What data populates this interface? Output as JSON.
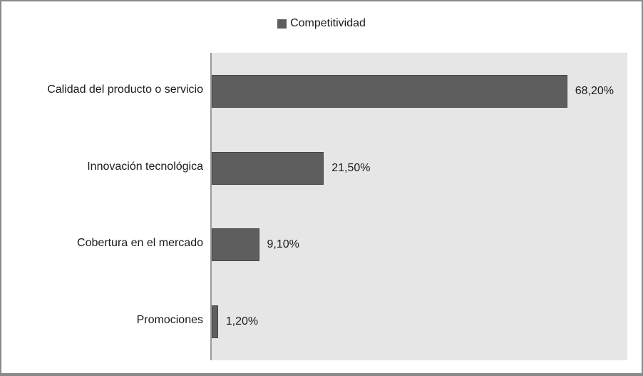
{
  "chart_data": {
    "type": "bar",
    "orientation": "horizontal",
    "legend": "Competitividad",
    "legend_position": "top-center",
    "categories": [
      "Calidad del producto o servicio",
      "Innovación tecnológica",
      "Cobertura en el mercado",
      "Promociones"
    ],
    "values": [
      68.2,
      21.5,
      9.1,
      1.2
    ],
    "value_labels": [
      "68,20%",
      "21,50%",
      "9,10%",
      "1,20%"
    ],
    "xlim": [
      0,
      80
    ],
    "grid": false,
    "value_labels_visible": true,
    "colors": {
      "bar_fill": "#5e5e5e",
      "bar_border": "#474747",
      "plot_background": "#e6e6e6",
      "axis_line": "#9a9a9a",
      "frame_border": "#8a8a8a",
      "text": "#1a1a1a"
    }
  }
}
